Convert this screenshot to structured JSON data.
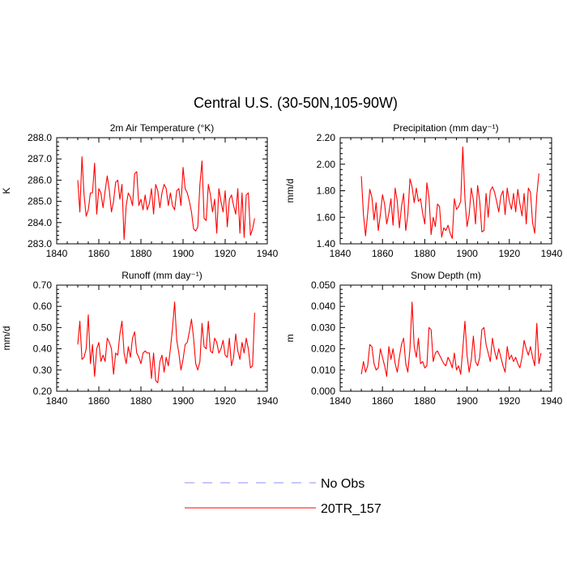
{
  "figure": {
    "title": "Central U.S. (30-50N,105-90W)"
  },
  "legend": {
    "placement": "bottom-center",
    "entries": [
      {
        "label": "No Obs",
        "color": "#8c8cff",
        "style": "dashed"
      },
      {
        "label": "20TR_157",
        "color": "#ff0000",
        "style": "solid"
      }
    ]
  },
  "chart_data": [
    {
      "type": "line",
      "title": "2m Air Temperature (°K)",
      "ylabel": "K",
      "xlim": [
        1840,
        1940
      ],
      "ylim": [
        283.0,
        288.0
      ],
      "xticks": [
        1840,
        1860,
        1880,
        1900,
        1920,
        1940
      ],
      "xtick_labels": [
        "1840",
        "1860",
        "1880",
        "1900",
        "1920",
        "1940"
      ],
      "yticks": [
        283.0,
        284.0,
        285.0,
        286.0,
        287.0,
        288.0
      ],
      "ytick_labels": [
        "283.0",
        "284.0",
        "285.0",
        "286.0",
        "287.0",
        "288.0"
      ],
      "grid": false,
      "series": [
        {
          "name": "20TR_157",
          "color": "#ff0000",
          "x_start": 1850,
          "x_step": 1,
          "values": [
            286.0,
            284.5,
            287.1,
            285.3,
            284.3,
            284.6,
            285.4,
            285.4,
            286.8,
            284.4,
            285.6,
            285.4,
            284.7,
            285.5,
            286.2,
            285.5,
            284.5,
            285.0,
            285.9,
            286.0,
            285.1,
            285.8,
            283.2,
            284.8,
            285.4,
            285.2,
            284.8,
            286.3,
            286.4,
            284.8,
            285.1,
            284.6,
            285.3,
            284.6,
            284.9,
            285.6,
            284.4,
            285.8,
            285.5,
            284.7,
            285.4,
            285.8,
            285.6,
            284.8,
            285.4,
            284.8,
            284.6,
            285.5,
            285.6,
            284.8,
            286.6,
            285.6,
            285.4,
            285.0,
            284.5,
            283.7,
            283.6,
            283.8,
            285.8,
            286.9,
            284.2,
            284.1,
            285.8,
            285.3,
            284.5,
            285.1,
            283.5,
            285.6,
            285.0,
            284.5,
            285.5,
            283.8,
            285.1,
            285.3,
            284.8,
            284.4,
            285.6,
            283.5,
            285.4,
            283.3,
            285.3,
            285.4,
            283.4,
            283.7,
            284.2
          ]
        }
      ]
    },
    {
      "type": "line",
      "title": "Precipitation (mm day⁻¹)",
      "ylabel": "mm/d",
      "xlim": [
        1840,
        1940
      ],
      "ylim": [
        1.4,
        2.2
      ],
      "xticks": [
        1840,
        1860,
        1880,
        1900,
        1920,
        1940
      ],
      "xtick_labels": [
        "1840",
        "1860",
        "1880",
        "1900",
        "1920",
        "1940"
      ],
      "yticks": [
        1.4,
        1.6,
        1.8,
        2.0,
        2.2
      ],
      "ytick_labels": [
        "1.40",
        "1.60",
        "1.80",
        "2.00",
        "2.20"
      ],
      "grid": false,
      "series": [
        {
          "name": "20TR_157",
          "color": "#ff0000",
          "x_start": 1850,
          "x_step": 1,
          "values": [
            1.91,
            1.62,
            1.46,
            1.63,
            1.81,
            1.75,
            1.58,
            1.71,
            1.5,
            1.62,
            1.77,
            1.7,
            1.55,
            1.63,
            1.74,
            1.54,
            1.82,
            1.72,
            1.52,
            1.68,
            1.78,
            1.5,
            1.62,
            1.89,
            1.83,
            1.71,
            1.82,
            1.72,
            1.74,
            1.63,
            1.55,
            1.86,
            1.75,
            1.47,
            1.6,
            1.53,
            1.7,
            1.68,
            1.45,
            1.52,
            1.5,
            1.54,
            1.48,
            1.44,
            1.74,
            1.66,
            1.68,
            1.72,
            2.13,
            1.74,
            1.53,
            1.62,
            1.82,
            1.73,
            1.55,
            1.84,
            1.72,
            1.49,
            1.5,
            1.78,
            1.6,
            1.8,
            1.83,
            1.79,
            1.72,
            1.64,
            1.76,
            1.8,
            1.62,
            1.82,
            1.72,
            1.66,
            1.78,
            1.64,
            1.81,
            1.7,
            1.61,
            1.78,
            1.55,
            1.82,
            1.79,
            1.56,
            1.48,
            1.77,
            1.93
          ]
        }
      ]
    },
    {
      "type": "line",
      "title": "Runoff (mm day⁻¹)",
      "ylabel": "mm/d",
      "xlim": [
        1840,
        1940
      ],
      "ylim": [
        0.2,
        0.7
      ],
      "xticks": [
        1840,
        1860,
        1880,
        1900,
        1920,
        1940
      ],
      "xtick_labels": [
        "1840",
        "1860",
        "1880",
        "1900",
        "1920",
        "1940"
      ],
      "yticks": [
        0.2,
        0.3,
        0.4,
        0.5,
        0.6,
        0.7
      ],
      "ytick_labels": [
        "0.20",
        "0.30",
        "0.40",
        "0.50",
        "0.60",
        "0.70"
      ],
      "grid": false,
      "series": [
        {
          "name": "20TR_157",
          "color": "#ff0000",
          "x_start": 1850,
          "x_step": 1,
          "values": [
            0.42,
            0.53,
            0.35,
            0.36,
            0.4,
            0.56,
            0.33,
            0.42,
            0.27,
            0.4,
            0.43,
            0.34,
            0.37,
            0.34,
            0.45,
            0.43,
            0.4,
            0.28,
            0.38,
            0.37,
            0.47,
            0.53,
            0.38,
            0.33,
            0.41,
            0.36,
            0.45,
            0.48,
            0.38,
            0.36,
            0.33,
            0.38,
            0.39,
            0.38,
            0.38,
            0.26,
            0.38,
            0.25,
            0.24,
            0.34,
            0.37,
            0.29,
            0.36,
            0.32,
            0.4,
            0.5,
            0.62,
            0.44,
            0.38,
            0.3,
            0.35,
            0.42,
            0.43,
            0.48,
            0.54,
            0.45,
            0.33,
            0.3,
            0.34,
            0.52,
            0.41,
            0.4,
            0.53,
            0.39,
            0.38,
            0.45,
            0.43,
            0.38,
            0.4,
            0.44,
            0.37,
            0.36,
            0.45,
            0.32,
            0.36,
            0.47,
            0.39,
            0.35,
            0.43,
            0.38,
            0.45,
            0.4,
            0.31,
            0.32,
            0.57
          ]
        }
      ]
    },
    {
      "type": "line",
      "title": "Snow Depth (m)",
      "ylabel": "m",
      "xlim": [
        1840,
        1940
      ],
      "ylim": [
        0.0,
        0.05
      ],
      "xticks": [
        1840,
        1860,
        1880,
        1900,
        1920,
        1940
      ],
      "xtick_labels": [
        "1840",
        "1860",
        "1880",
        "1900",
        "1920",
        "1940"
      ],
      "yticks": [
        0.0,
        0.01,
        0.02,
        0.03,
        0.04,
        0.05
      ],
      "ytick_labels": [
        "0.000",
        "0.010",
        "0.020",
        "0.030",
        "0.040",
        "0.050"
      ],
      "grid": false,
      "series": [
        {
          "name": "20TR_157",
          "color": "#ff0000",
          "x_start": 1850,
          "x_step": 1,
          "values": [
            0.008,
            0.014,
            0.009,
            0.012,
            0.022,
            0.021,
            0.013,
            0.01,
            0.011,
            0.02,
            0.016,
            0.012,
            0.007,
            0.021,
            0.015,
            0.02,
            0.013,
            0.009,
            0.016,
            0.022,
            0.025,
            0.013,
            0.009,
            0.02,
            0.042,
            0.021,
            0.016,
            0.025,
            0.013,
            0.014,
            0.011,
            0.012,
            0.03,
            0.029,
            0.014,
            0.018,
            0.019,
            0.017,
            0.015,
            0.013,
            0.012,
            0.016,
            0.014,
            0.011,
            0.018,
            0.01,
            0.012,
            0.008,
            0.02,
            0.033,
            0.017,
            0.009,
            0.015,
            0.026,
            0.014,
            0.012,
            0.016,
            0.029,
            0.03,
            0.022,
            0.018,
            0.014,
            0.025,
            0.019,
            0.015,
            0.02,
            0.016,
            0.012,
            0.009,
            0.021,
            0.015,
            0.017,
            0.014,
            0.016,
            0.013,
            0.011,
            0.016,
            0.024,
            0.02,
            0.017,
            0.021,
            0.016,
            0.012,
            0.032,
            0.013,
            0.018
          ]
        }
      ]
    }
  ]
}
